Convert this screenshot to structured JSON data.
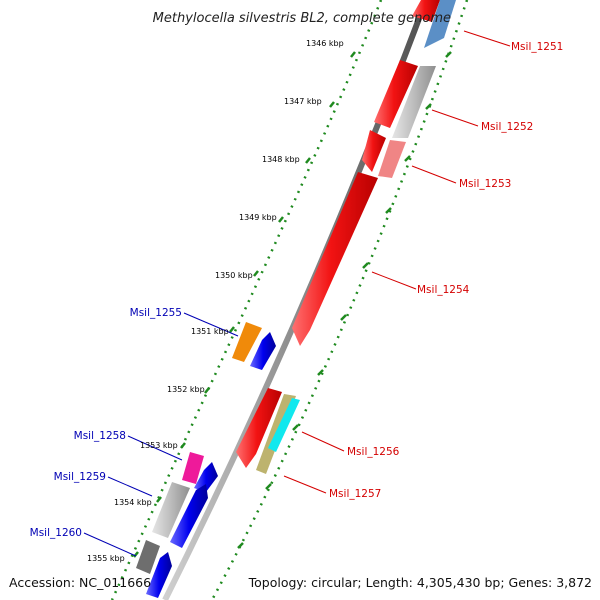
{
  "title": "Methylocella silvestris BL2, complete genome",
  "accession": "Accession: NC_011666",
  "summary": "Topology: circular; Length: 4,305,430 bp; Genes: 3,872",
  "colors": {
    "backbone": "#8c8c8c",
    "tick": "#1f8a1f",
    "forward_label": "#d40000",
    "reverse_label": "#0000b4",
    "red": "#f21313",
    "lightred": "#f08585",
    "blue": "#0000ee",
    "steelblue": "#5b8fc6",
    "gray": "#bcbcbc",
    "darkgray": "#6e6e6e",
    "orange": "#f08a0a",
    "magenta": "#ee1a9a",
    "cyan": "#10e8ee",
    "khaki": "#bdb36e"
  },
  "kbp_labels": [
    "1346 kbp",
    "1347 kbp",
    "1348 kbp",
    "1349 kbp",
    "1350 kbp",
    "1351 kbp",
    "1352 kbp",
    "1353 kbp",
    "1354 kbp",
    "1355 kbp"
  ],
  "gene_labels_right": [
    "Msil_1251",
    "Msil_1252",
    "Msil_1253",
    "Msil_1254",
    "Msil_1256",
    "Msil_1257"
  ],
  "gene_labels_left": [
    "Msil_1255",
    "Msil_1258",
    "Msil_1259",
    "Msil_1260"
  ]
}
